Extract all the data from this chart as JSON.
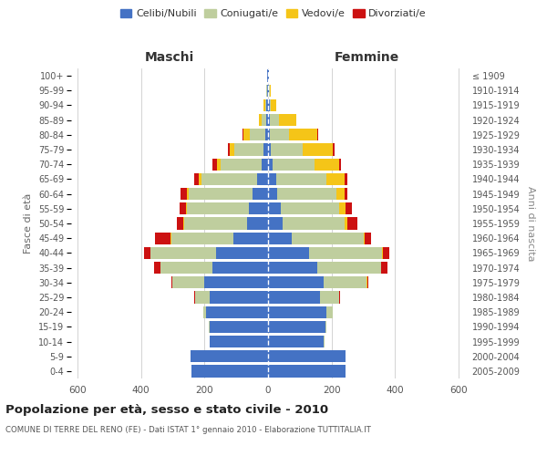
{
  "age_groups": [
    "0-4",
    "5-9",
    "10-14",
    "15-19",
    "20-24",
    "25-29",
    "30-34",
    "35-39",
    "40-44",
    "45-49",
    "50-54",
    "55-59",
    "60-64",
    "65-69",
    "70-74",
    "75-79",
    "80-84",
    "85-89",
    "90-94",
    "95-99",
    "100+"
  ],
  "birth_years": [
    "2005-2009",
    "2000-2004",
    "1995-1999",
    "1990-1994",
    "1985-1989",
    "1980-1984",
    "1975-1979",
    "1970-1974",
    "1965-1969",
    "1960-1964",
    "1955-1959",
    "1950-1954",
    "1945-1949",
    "1940-1944",
    "1935-1939",
    "1930-1934",
    "1925-1929",
    "1920-1924",
    "1915-1919",
    "1910-1914",
    "≤ 1909"
  ],
  "maschi": {
    "celibi": [
      240,
      245,
      185,
      185,
      195,
      185,
      200,
      175,
      165,
      110,
      65,
      60,
      50,
      35,
      20,
      15,
      8,
      5,
      5,
      3,
      2
    ],
    "coniugati": [
      0,
      0,
      0,
      3,
      10,
      45,
      100,
      165,
      205,
      195,
      200,
      195,
      200,
      175,
      130,
      90,
      50,
      15,
      5,
      2,
      0
    ],
    "vedovi": [
      0,
      0,
      0,
      0,
      0,
      0,
      0,
      0,
      0,
      1,
      2,
      3,
      5,
      8,
      10,
      15,
      20,
      10,
      3,
      1,
      0
    ],
    "divorziati": [
      0,
      0,
      0,
      0,
      0,
      2,
      5,
      20,
      20,
      50,
      20,
      20,
      20,
      15,
      15,
      5,
      3,
      0,
      0,
      0,
      0
    ]
  },
  "femmine": {
    "nubili": [
      245,
      245,
      175,
      180,
      185,
      165,
      175,
      155,
      130,
      75,
      45,
      40,
      30,
      25,
      15,
      10,
      5,
      5,
      5,
      3,
      2
    ],
    "coniugate": [
      0,
      0,
      2,
      5,
      20,
      60,
      135,
      200,
      230,
      225,
      195,
      185,
      185,
      160,
      130,
      100,
      60,
      30,
      5,
      2,
      0
    ],
    "vedove": [
      0,
      0,
      0,
      0,
      0,
      0,
      2,
      2,
      2,
      5,
      10,
      20,
      25,
      55,
      80,
      95,
      90,
      55,
      15,
      5,
      2
    ],
    "divorziate": [
      0,
      0,
      0,
      0,
      0,
      2,
      5,
      20,
      20,
      20,
      30,
      20,
      10,
      10,
      5,
      5,
      3,
      0,
      0,
      0,
      0
    ]
  },
  "colors": {
    "celibi": "#4472C4",
    "coniugati": "#BFCE9E",
    "vedovi": "#F5C518",
    "divorziati": "#CC1111"
  },
  "xlim": 620,
  "title": "Popolazione per età, sesso e stato civile - 2010",
  "subtitle": "COMUNE DI TERRE DEL RENO (FE) - Dati ISTAT 1° gennaio 2010 - Elaborazione TUTTITALIA.IT",
  "ylabel_left": "Fasce di età",
  "ylabel_right": "Anni di nascita",
  "label_maschi": "Maschi",
  "label_femmine": "Femmine",
  "bg_color": "#FFFFFF",
  "grid_color": "#CCCCCC",
  "legend": [
    "Celibi/Nubili",
    "Coniugati/e",
    "Vedovi/e",
    "Divorziati/e"
  ]
}
